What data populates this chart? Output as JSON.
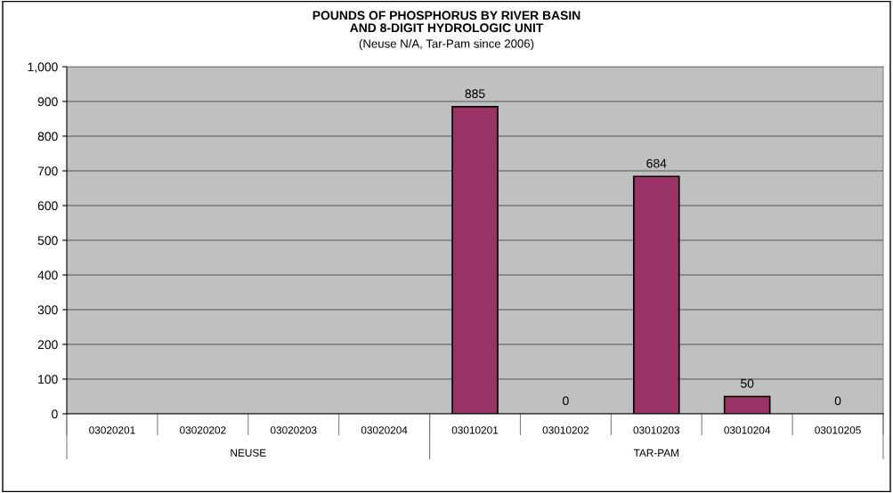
{
  "chart_data": {
    "type": "bar",
    "title": "POUNDS OF PHOSPHORUS BY RIVER BASIN\nAND 8-DIGIT HYDROLOGIC UNIT",
    "subtitle": "(Neuse N/A, Tar-Pam since 2006)",
    "categories": [
      "03020201",
      "03020202",
      "03020203",
      "03020204",
      "03010201",
      "03010202",
      "03010203",
      "03010204",
      "03010205"
    ],
    "values": [
      null,
      null,
      null,
      null,
      885,
      0,
      684,
      50,
      0
    ],
    "color": "#993366",
    "ylim": [
      0,
      1000
    ],
    "yticks": [
      0,
      100,
      200,
      300,
      400,
      500,
      600,
      700,
      800,
      900,
      {
        "value": 1000,
        "label": "1,000"
      }
    ],
    "grid": "y",
    "data_labels": true,
    "annotations": [
      "NEUSE",
      "TAR-PAM"
    ]
  }
}
